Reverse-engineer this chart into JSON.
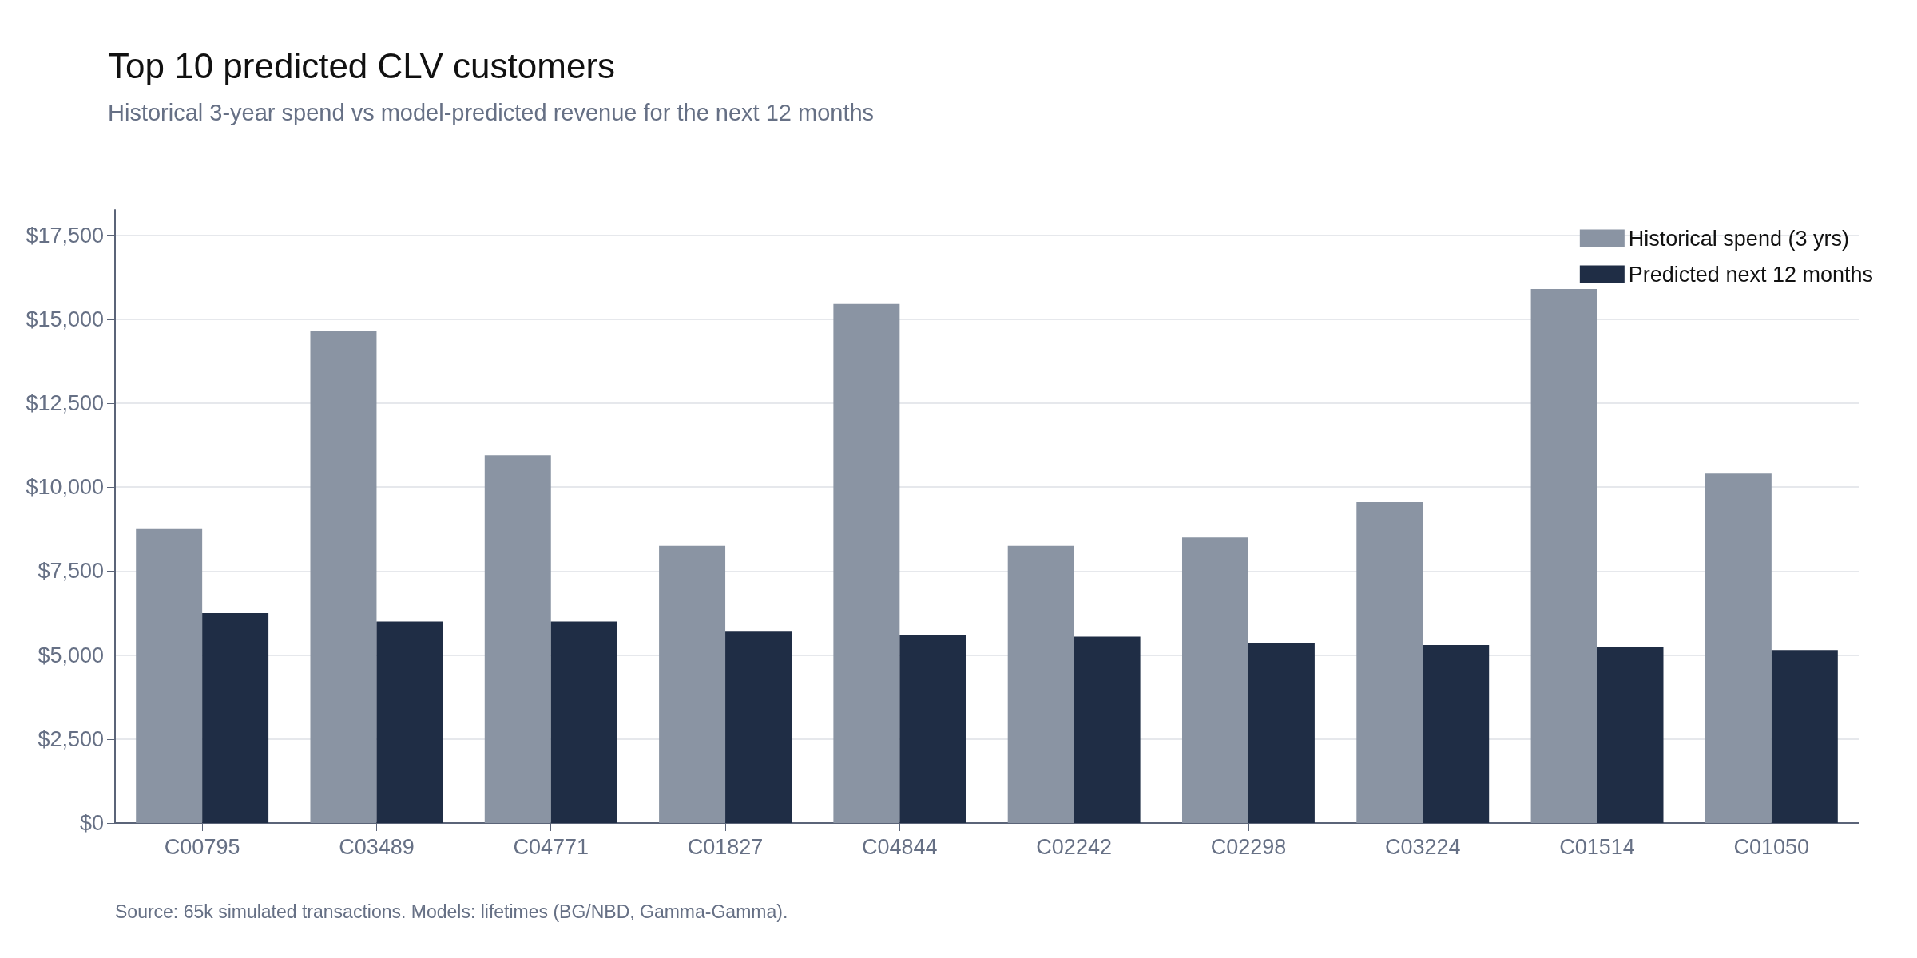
{
  "chart_data": {
    "type": "bar",
    "title": "Top 10 predicted CLV customers",
    "subtitle": "Historical 3-year spend vs model-predicted revenue for the next 12 months",
    "categories": [
      "C00795",
      "C03489",
      "C04771",
      "C01827",
      "C04844",
      "C02242",
      "C02298",
      "C03224",
      "C01514",
      "C01050"
    ],
    "series": [
      {
        "name": "Historical spend (3 yrs)",
        "color": "#8a94a3",
        "values": [
          8750,
          14650,
          10950,
          8250,
          15450,
          8250,
          8500,
          9550,
          15900,
          10400
        ]
      },
      {
        "name": "Predicted next 12 months",
        "color": "#1f2d45",
        "values": [
          6250,
          6000,
          6000,
          5700,
          5600,
          5550,
          5350,
          5300,
          5250,
          5150
        ]
      }
    ],
    "ylim": [
      0,
      18250
    ],
    "yticks": [
      {
        "value": 0,
        "label": "$0"
      },
      {
        "value": 2500,
        "label": "$2,500"
      },
      {
        "value": 5000,
        "label": "$5,000"
      },
      {
        "value": 7500,
        "label": "$7,500"
      },
      {
        "value": 10000,
        "label": "$10,000"
      },
      {
        "value": 12500,
        "label": "$12,500"
      },
      {
        "value": 15000,
        "label": "$15,000"
      },
      {
        "value": 17500,
        "label": "$17,500"
      }
    ],
    "grid": "y",
    "legend": "top right",
    "annotations": [
      "Source: 65k simulated transactions. Models: lifetimes (BG/NBD, Gamma-Gamma)."
    ]
  }
}
